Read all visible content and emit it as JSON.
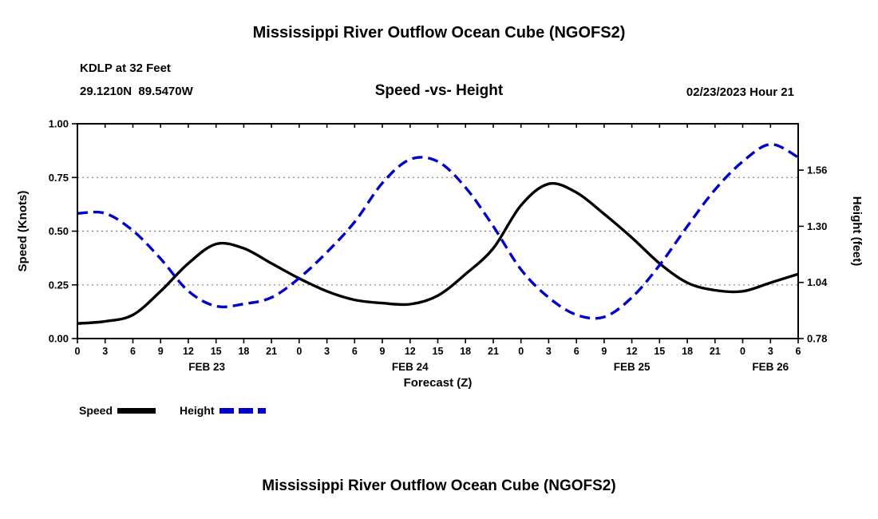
{
  "chart_data": {
    "type": "line",
    "title": "Mississippi River Outflow Ocean Cube (NGOFS2)",
    "station": "KDLP at 32 Feet",
    "coordinates": "29.1210N  89.5470W",
    "subtitle": "Speed -vs- Height",
    "datetime": "02/23/2023 Hour 21",
    "xlabel": "Forecast (Z)",
    "footer_title": "Mississippi River Outflow Ocean Cube (NGOFS2)",
    "x_hours": [
      0,
      3,
      6,
      9,
      12,
      15,
      18,
      21,
      24,
      27,
      30,
      33,
      36,
      39,
      42,
      45,
      48,
      51,
      54,
      57,
      60,
      63,
      66,
      69,
      72,
      75,
      78
    ],
    "hour_tick_labels": [
      "0",
      "3",
      "6",
      "9",
      "12",
      "15",
      "18",
      "21",
      "0",
      "3",
      "6",
      "9",
      "12",
      "15",
      "18",
      "21",
      "0",
      "3",
      "6",
      "9",
      "12",
      "15",
      "18",
      "21",
      "0",
      "3",
      "6"
    ],
    "date_labels": [
      {
        "label": "FEB 23",
        "hour": 14
      },
      {
        "label": "FEB 24",
        "hour": 36
      },
      {
        "label": "FEB 25",
        "hour": 60
      },
      {
        "label": "FEB 26",
        "hour": 75
      }
    ],
    "y_left": {
      "label": "Speed (Knots)",
      "min": 0.0,
      "max": 1.0,
      "ticks": [
        {
          "value": 0.0,
          "label": "0.00"
        },
        {
          "value": 0.25,
          "label": "0.25"
        },
        {
          "value": 0.5,
          "label": "0.50"
        },
        {
          "value": 0.75,
          "label": "0.75"
        },
        {
          "value": 1.0,
          "label": "1.00"
        }
      ],
      "gridlines": [
        0.25,
        0.5,
        0.75
      ]
    },
    "y_right": {
      "label": "Height (feet)",
      "min": 0.78,
      "max": 1.775,
      "ticks": [
        {
          "value": 0.78,
          "label": "0.78"
        },
        {
          "value": 1.04,
          "label": "1.04"
        },
        {
          "value": 1.3,
          "label": "1.30"
        },
        {
          "value": 1.56,
          "label": "1.56"
        }
      ]
    },
    "series": [
      {
        "name": "Speed",
        "units": "knots",
        "axis": "left",
        "color": "#000000",
        "style": "solid",
        "values": [
          0.07,
          0.08,
          0.11,
          0.22,
          0.35,
          0.44,
          0.42,
          0.35,
          0.28,
          0.22,
          0.18,
          0.165,
          0.16,
          0.2,
          0.3,
          0.42,
          0.62,
          0.72,
          0.68,
          0.58,
          0.47,
          0.35,
          0.26,
          0.225,
          0.22,
          0.26,
          0.3
        ]
      },
      {
        "name": "Height",
        "units": "feet",
        "axis": "right",
        "color": "#0000cc",
        "style": "dashed",
        "values": [
          1.36,
          1.36,
          1.28,
          1.15,
          1.0,
          0.93,
          0.94,
          0.97,
          1.06,
          1.18,
          1.32,
          1.5,
          1.61,
          1.6,
          1.48,
          1.3,
          1.1,
          0.97,
          0.89,
          0.88,
          0.97,
          1.12,
          1.3,
          1.47,
          1.6,
          1.68,
          1.62
        ]
      }
    ],
    "colors": {
      "speed_line": "#000000",
      "height_line": "#0000cc",
      "gridline": "#808080",
      "frame": "#000000"
    }
  }
}
